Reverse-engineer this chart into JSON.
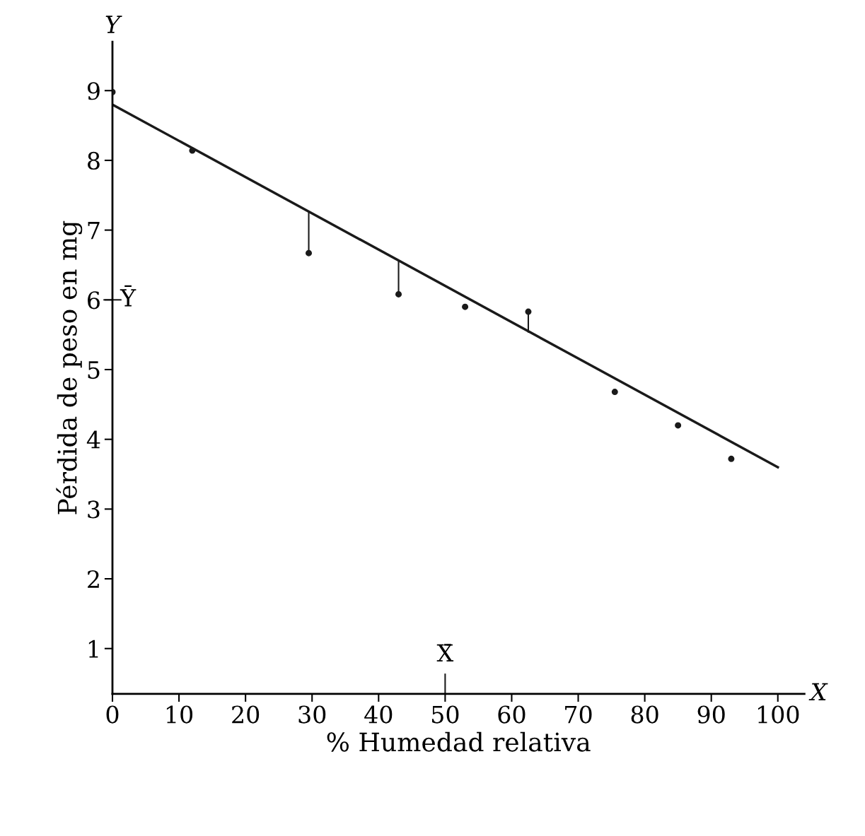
{
  "chart_data": {
    "type": "scatter",
    "xlabel": "% Humedad relativa",
    "ylabel": "Pérdida de peso en mg",
    "series": [
      {
        "color": "#1a1a1a",
        "marker": "circle",
        "x": [
          0,
          12,
          29.5,
          43,
          53,
          62.5,
          75.5,
          85,
          93
        ],
        "values": [
          8.98,
          8.14,
          6.67,
          6.08,
          5.9,
          5.83,
          4.68,
          4.2,
          3.72
        ],
        "errors": [
          null,
          null,
          [
            6.67,
            7.27
          ],
          [
            6.08,
            6.55
          ],
          null,
          [
            5.53,
            5.83
          ],
          null,
          null,
          null
        ]
      },
      {
        "type": "line",
        "color": "#1a1a1a",
        "marker": "none",
        "line_style": "solid",
        "x": [
          0,
          100
        ],
        "values": [
          8.8,
          3.6
        ]
      }
    ],
    "xlim": [
      0,
      104
    ],
    "ylim": [
      0.35,
      9.7
    ],
    "xticks": [
      0,
      10,
      20,
      30,
      40,
      50,
      60,
      70,
      80,
      90,
      100
    ],
    "yticks": [
      1,
      2,
      3,
      4,
      5,
      6,
      7,
      8,
      9
    ],
    "grid": false,
    "legend": false,
    "ref_lines": [
      {
        "axis": "y",
        "value": 6,
        "label": "Ȳ"
      },
      {
        "axis": "x",
        "value": 50,
        "label": "X̄"
      }
    ],
    "annotations": [
      "Y",
      "X"
    ]
  }
}
